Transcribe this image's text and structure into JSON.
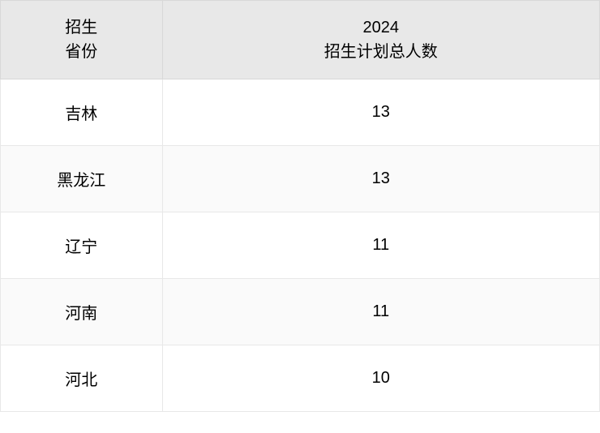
{
  "table": {
    "columns": [
      {
        "header_line1": "招生",
        "header_line2": "省份"
      },
      {
        "header_line1": "2024",
        "header_line2": "招生计划总人数"
      }
    ],
    "rows": [
      {
        "province": "吉林",
        "count": "13"
      },
      {
        "province": "黑龙江",
        "count": "13"
      },
      {
        "province": "辽宁",
        "count": "11"
      },
      {
        "province": "河南",
        "count": "11"
      },
      {
        "province": "河北",
        "count": "10"
      }
    ],
    "header_bg": "#e8e8e8",
    "row_odd_bg": "#ffffff",
    "row_even_bg": "#fafafa",
    "border_color": "#d8d8d8",
    "text_color": "#000000",
    "font_size": 20
  }
}
